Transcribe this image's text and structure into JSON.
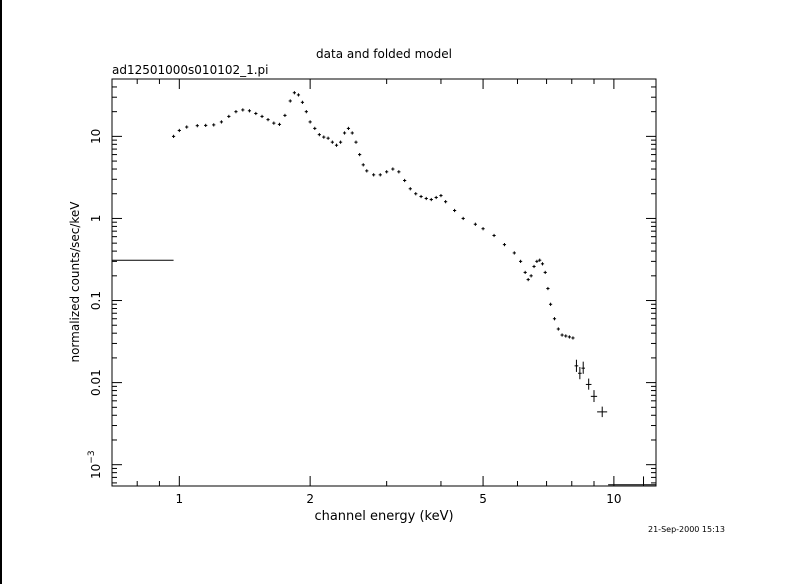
{
  "chart_data": {
    "type": "scatter",
    "title": "data and folded model",
    "subtitle": "ad12501000s010102_1.pi",
    "xlabel": "channel energy (keV)",
    "ylabel": "normalized counts/sec/keV",
    "timestamp": "21-Sep-2000 15:13",
    "x_scale": "log",
    "y_scale": "log",
    "xlim": [
      0.7,
      12.5
    ],
    "ylim": [
      0.00055,
      50
    ],
    "x_ticks": [
      {
        "value": 1,
        "label": "1"
      },
      {
        "value": 2,
        "label": "2"
      },
      {
        "value": 5,
        "label": "5"
      },
      {
        "value": 10,
        "label": "10"
      }
    ],
    "y_ticks": [
      {
        "value": 10,
        "label": "10"
      },
      {
        "value": 1,
        "label": "1"
      },
      {
        "value": 0.1,
        "label": "0.1"
      },
      {
        "value": 0.01,
        "label": "0.01"
      },
      {
        "value": 0.001,
        "label": "10",
        "sup": "−3"
      }
    ],
    "grid": false,
    "series": [
      {
        "color": "#000000",
        "points": [
          [
            0.97,
            10.0
          ],
          [
            1.0,
            11.8
          ],
          [
            1.04,
            13.0
          ],
          [
            1.1,
            13.5
          ],
          [
            1.15,
            13.6
          ],
          [
            1.2,
            13.8
          ],
          [
            1.25,
            15.0
          ],
          [
            1.3,
            17.5
          ],
          [
            1.35,
            20.0
          ],
          [
            1.4,
            21.0
          ],
          [
            1.45,
            20.5
          ],
          [
            1.5,
            19.0
          ],
          [
            1.55,
            17.5
          ],
          [
            1.6,
            16.0
          ],
          [
            1.65,
            14.5
          ],
          [
            1.7,
            14.0
          ],
          [
            1.75,
            18.0
          ],
          [
            1.8,
            27.0
          ],
          [
            1.84,
            34.0
          ],
          [
            1.88,
            32.0
          ],
          [
            1.92,
            26.0
          ],
          [
            1.96,
            20.0
          ],
          [
            2.0,
            15.0
          ],
          [
            2.05,
            12.5
          ],
          [
            2.1,
            10.5
          ],
          [
            2.15,
            9.8
          ],
          [
            2.2,
            9.5
          ],
          [
            2.25,
            8.5
          ],
          [
            2.3,
            7.8
          ],
          [
            2.35,
            8.5
          ],
          [
            2.4,
            11.0
          ],
          [
            2.45,
            12.5
          ],
          [
            2.5,
            11.0
          ],
          [
            2.55,
            8.5
          ],
          [
            2.6,
            6.0
          ],
          [
            2.65,
            4.5
          ],
          [
            2.7,
            3.8
          ],
          [
            2.8,
            3.4
          ],
          [
            2.9,
            3.4
          ],
          [
            3.0,
            3.7
          ],
          [
            3.1,
            4.0
          ],
          [
            3.2,
            3.7
          ],
          [
            3.3,
            2.9
          ],
          [
            3.4,
            2.3
          ],
          [
            3.5,
            2.0
          ],
          [
            3.6,
            1.85
          ],
          [
            3.7,
            1.75
          ],
          [
            3.8,
            1.7
          ],
          [
            3.9,
            1.8
          ],
          [
            4.0,
            1.9
          ],
          [
            4.1,
            1.6
          ],
          [
            4.3,
            1.25
          ],
          [
            4.5,
            1.0
          ],
          [
            4.8,
            0.85
          ],
          [
            5.0,
            0.75
          ],
          [
            5.3,
            0.62
          ],
          [
            5.6,
            0.48
          ],
          [
            5.9,
            0.38
          ],
          [
            6.1,
            0.3
          ],
          [
            6.25,
            0.22
          ],
          [
            6.35,
            0.18
          ],
          [
            6.45,
            0.2
          ],
          [
            6.55,
            0.26
          ],
          [
            6.65,
            0.3
          ],
          [
            6.75,
            0.31
          ],
          [
            6.85,
            0.28
          ],
          [
            6.95,
            0.22
          ],
          [
            7.05,
            0.14
          ],
          [
            7.15,
            0.09
          ],
          [
            7.3,
            0.06
          ],
          [
            7.45,
            0.045
          ],
          [
            7.6,
            0.038
          ],
          [
            7.75,
            0.037
          ],
          [
            7.9,
            0.036
          ],
          [
            8.05,
            0.035
          ],
          [
            8.2,
            0.016
          ],
          [
            8.35,
            0.013
          ],
          [
            8.5,
            0.015
          ],
          [
            8.75,
            0.0095
          ],
          [
            9.0,
            0.0068
          ],
          [
            9.4,
            0.0044
          ],
          [
            11.7,
            0.00057
          ]
        ],
        "error_bars": [
          {
            "x": 8.2,
            "y": 0.016,
            "x_lo": 8.12,
            "x_hi": 8.28,
            "y_lo": 0.0135,
            "y_hi": 0.019
          },
          {
            "x": 8.35,
            "y": 0.013,
            "x_lo": 8.27,
            "x_hi": 8.43,
            "y_lo": 0.011,
            "y_hi": 0.0155
          },
          {
            "x": 8.5,
            "y": 0.015,
            "x_lo": 8.42,
            "x_hi": 8.58,
            "y_lo": 0.0128,
            "y_hi": 0.018
          },
          {
            "x": 8.75,
            "y": 0.0095,
            "x_lo": 8.62,
            "x_hi": 8.88,
            "y_lo": 0.0082,
            "y_hi": 0.0112
          },
          {
            "x": 9.0,
            "y": 0.0068,
            "x_lo": 8.85,
            "x_hi": 9.15,
            "y_lo": 0.0058,
            "y_hi": 0.0081
          },
          {
            "x": 9.4,
            "y": 0.0044,
            "x_lo": 9.15,
            "x_hi": 9.65,
            "y_lo": 0.0038,
            "y_hi": 0.0051
          },
          {
            "x": 11.7,
            "y": 0.00057,
            "x_lo": 9.7,
            "x_hi": 12.5,
            "y_lo": 0.00055,
            "y_hi": 0.00072
          }
        ]
      },
      {
        "color": "#000000",
        "points": [
          [
            0.82,
            0.31
          ]
        ],
        "error_bars": [
          {
            "x": 0.82,
            "y": 0.31,
            "x_lo": 0.7,
            "x_hi": 0.97,
            "y_lo": 0.31,
            "y_hi": 0.31
          }
        ]
      }
    ]
  }
}
